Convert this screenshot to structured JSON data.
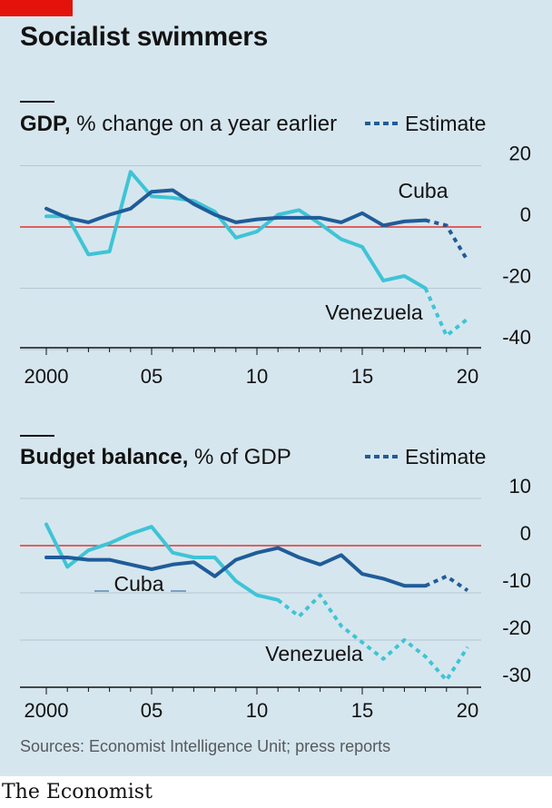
{
  "title": "Socialist swimmers",
  "sources": "Sources: Economist Intelligence Unit; press reports",
  "brand": "The Economist",
  "colors": {
    "panel": "#d6e6ee",
    "cuba": "#1f5c99",
    "venezuela": "#3ec4d6",
    "zero": "#e3120b",
    "grid": "#b7c7d1",
    "axis": "#121212",
    "text": "#121212"
  },
  "chart_data": [
    {
      "type": "line",
      "title_bold": "GDP,",
      "title_rest": " % change on a year earlier",
      "legend_estimate": "Estimate",
      "x_ticks": [
        "2000",
        "05",
        "10",
        "15",
        "20"
      ],
      "x_tick_years": [
        2000,
        2005,
        2010,
        2015,
        2020
      ],
      "y_ticks": [
        "20",
        "0",
        "-20",
        "-40"
      ],
      "y_tick_values": [
        20,
        0,
        -20,
        -40
      ],
      "ylim": [
        -40,
        20
      ],
      "xlim": [
        2000,
        2020
      ],
      "grid": true,
      "series": [
        {
          "name": "Cuba",
          "key": "cuba",
          "x": [
            2000,
            2001,
            2002,
            2003,
            2004,
            2005,
            2006,
            2007,
            2008,
            2009,
            2010,
            2011,
            2012,
            2013,
            2014,
            2015,
            2016,
            2017,
            2018,
            2019,
            2020
          ],
          "values": [
            6,
            3,
            1.5,
            4,
            6,
            11.5,
            12,
            7.5,
            4,
            1.5,
            2.5,
            3,
            3,
            3,
            1.5,
            4.5,
            0.5,
            1.8,
            2.2,
            0.5,
            -11
          ],
          "estimate_from": 2018
        },
        {
          "name": "Venezuela",
          "key": "venezuela",
          "x": [
            2000,
            2001,
            2002,
            2003,
            2004,
            2005,
            2006,
            2007,
            2008,
            2009,
            2010,
            2011,
            2012,
            2013,
            2014,
            2015,
            2016,
            2017,
            2018,
            2019,
            2020
          ],
          "values": [
            3.5,
            3.5,
            -9,
            -8,
            18,
            10,
            9.5,
            8.5,
            5,
            -3.5,
            -1.5,
            4,
            5.5,
            1,
            -4,
            -6.5,
            -17.5,
            -16,
            -20,
            -35.5,
            -30
          ],
          "estimate_from": 2018
        }
      ]
    },
    {
      "type": "line",
      "title_bold": "Budget balance,",
      "title_rest": " % of GDP",
      "legend_estimate": "Estimate",
      "x_ticks": [
        "2000",
        "05",
        "10",
        "15",
        "20"
      ],
      "x_tick_years": [
        2000,
        2005,
        2010,
        2015,
        2020
      ],
      "y_ticks": [
        "10",
        "0",
        "-10",
        "-20",
        "-30"
      ],
      "y_tick_values": [
        10,
        0,
        -10,
        -20,
        -30
      ],
      "ylim": [
        -32,
        10
      ],
      "xlim": [
        2000,
        2020
      ],
      "grid": true,
      "series": [
        {
          "name": "Cuba",
          "key": "cuba",
          "x": [
            2000,
            2001,
            2002,
            2003,
            2004,
            2005,
            2006,
            2007,
            2008,
            2009,
            2010,
            2011,
            2012,
            2013,
            2014,
            2015,
            2016,
            2017,
            2018,
            2019,
            2020
          ],
          "values": [
            -2.5,
            -2.5,
            -3,
            -3,
            -4,
            -5,
            -4,
            -3.5,
            -6.5,
            -3,
            -1.5,
            -0.5,
            -2.5,
            -4,
            -2,
            -6,
            -7,
            -8.5,
            -8.5,
            -6.5,
            -9.5
          ],
          "estimate_from": 2018
        },
        {
          "name": "Venezuela",
          "key": "venezuela",
          "x": [
            2000,
            2001,
            2002,
            2003,
            2004,
            2005,
            2006,
            2007,
            2008,
            2009,
            2010,
            2011,
            2012,
            2013,
            2014,
            2015,
            2016,
            2017,
            2018,
            2019,
            2020
          ],
          "values": [
            4.5,
            -4.5,
            -1,
            0.5,
            2.5,
            4,
            -1.5,
            -2.5,
            -2.5,
            -7.5,
            -10.5,
            -11.5,
            -15,
            -10.5,
            -17,
            -20.5,
            -24,
            -20,
            -23.5,
            -28.5,
            -21.5
          ],
          "estimate_from": 2011
        }
      ]
    }
  ]
}
